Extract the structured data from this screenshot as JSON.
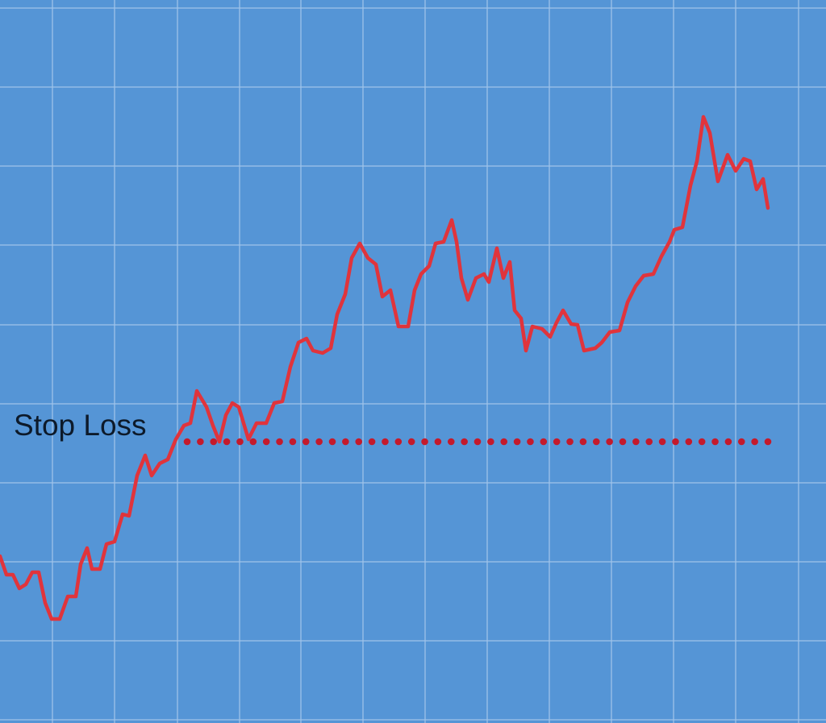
{
  "chart_data": {
    "type": "line",
    "x": [
      0,
      8,
      16,
      24,
      32,
      40,
      48,
      56,
      64,
      74,
      84,
      94,
      100,
      108,
      114,
      124,
      132,
      142,
      152,
      160,
      170,
      180,
      188,
      198,
      208,
      218,
      228,
      236,
      244,
      256,
      264,
      272,
      280,
      288,
      296,
      308,
      318,
      330,
      340,
      350,
      360,
      370,
      380,
      388,
      400,
      410,
      418,
      428,
      436,
      446,
      456,
      466,
      474,
      484,
      494,
      506,
      514,
      522,
      532,
      540,
      550,
      560,
      566,
      572,
      580,
      590,
      600,
      606,
      616,
      624,
      632,
      638,
      646,
      652,
      660,
      672,
      682,
      690,
      698,
      708,
      716,
      724,
      738,
      746,
      756,
      768,
      778,
      788,
      798,
      810,
      820,
      830,
      836,
      846,
      856,
      864,
      872,
      880,
      890,
      902,
      912,
      922,
      930,
      938,
      946,
      952
    ],
    "values": [
      207,
      184,
      184,
      167,
      172,
      187,
      187,
      149,
      129,
      129,
      157,
      157,
      197,
      217,
      191,
      191,
      222,
      225,
      259,
      257,
      307,
      332,
      307,
      322,
      327,
      352,
      369,
      372,
      412,
      392,
      369,
      349,
      382,
      397,
      392,
      352,
      372,
      372,
      397,
      399,
      442,
      472,
      477,
      462,
      459,
      465,
      507,
      532,
      577,
      595,
      577,
      569,
      529,
      537,
      492,
      492,
      537,
      557,
      567,
      595,
      597,
      624,
      597,
      552,
      525,
      552,
      557,
      547,
      589,
      552,
      572,
      512,
      502,
      462,
      492,
      489,
      479,
      497,
      512,
      495,
      494,
      462,
      465,
      472,
      485,
      487,
      522,
      542,
      555,
      557,
      579,
      597,
      612,
      615,
      667,
      697,
      752,
      732,
      672,
      705,
      685,
      700,
      697,
      662,
      675,
      639
    ],
    "color": "#e0343c",
    "xlim": [
      0,
      1024
    ],
    "ylim": [
      0,
      897
    ],
    "xticks": [
      65,
      142,
      220,
      297,
      373,
      450,
      527,
      604,
      681,
      758,
      835,
      912,
      990
    ],
    "yticks": [
      4,
      102,
      200,
      298,
      396,
      494,
      593,
      691,
      789,
      887
    ],
    "grid": true,
    "annotation": {
      "text": "Stop Loss",
      "value": 349,
      "x": [
        232,
        952
      ],
      "color": "#c41a2c"
    }
  }
}
